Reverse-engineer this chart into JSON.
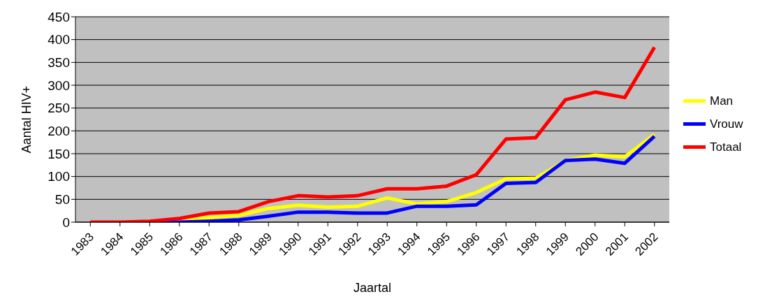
{
  "chart_data": {
    "type": "line",
    "xlabel": "Jaartal",
    "ylabel": "Aantal HIV+",
    "categories": [
      "1983",
      "1984",
      "1985",
      "1986",
      "1987",
      "1988",
      "1989",
      "1990",
      "1991",
      "1992",
      "1993",
      "1994",
      "1995",
      "1996",
      "1997",
      "1998",
      "1999",
      "2000",
      "2001",
      "2002"
    ],
    "series": [
      {
        "name": "Man",
        "color": "#ffff00",
        "values": [
          null,
          null,
          0,
          2,
          10,
          15,
          30,
          37,
          33,
          35,
          53,
          40,
          45,
          65,
          95,
          96,
          135,
          147,
          143,
          192
        ]
      },
      {
        "name": "Vrouw",
        "color": "#0000ff",
        "values": [
          null,
          null,
          0,
          0,
          2,
          5,
          13,
          22,
          22,
          20,
          20,
          35,
          35,
          38,
          85,
          87,
          135,
          138,
          129,
          188
        ]
      },
      {
        "name": "Totaal",
        "color": "#ff0000",
        "values": [
          0,
          0,
          2,
          8,
          20,
          23,
          45,
          58,
          55,
          58,
          73,
          73,
          79,
          104,
          182,
          185,
          268,
          285,
          273,
          383
        ]
      }
    ],
    "ylim": [
      0,
      450
    ],
    "yticks": [
      0,
      50,
      100,
      150,
      200,
      250,
      300,
      350,
      400,
      450
    ],
    "grid": "y",
    "legend": "right",
    "marker": "none",
    "line_style": "solid"
  }
}
